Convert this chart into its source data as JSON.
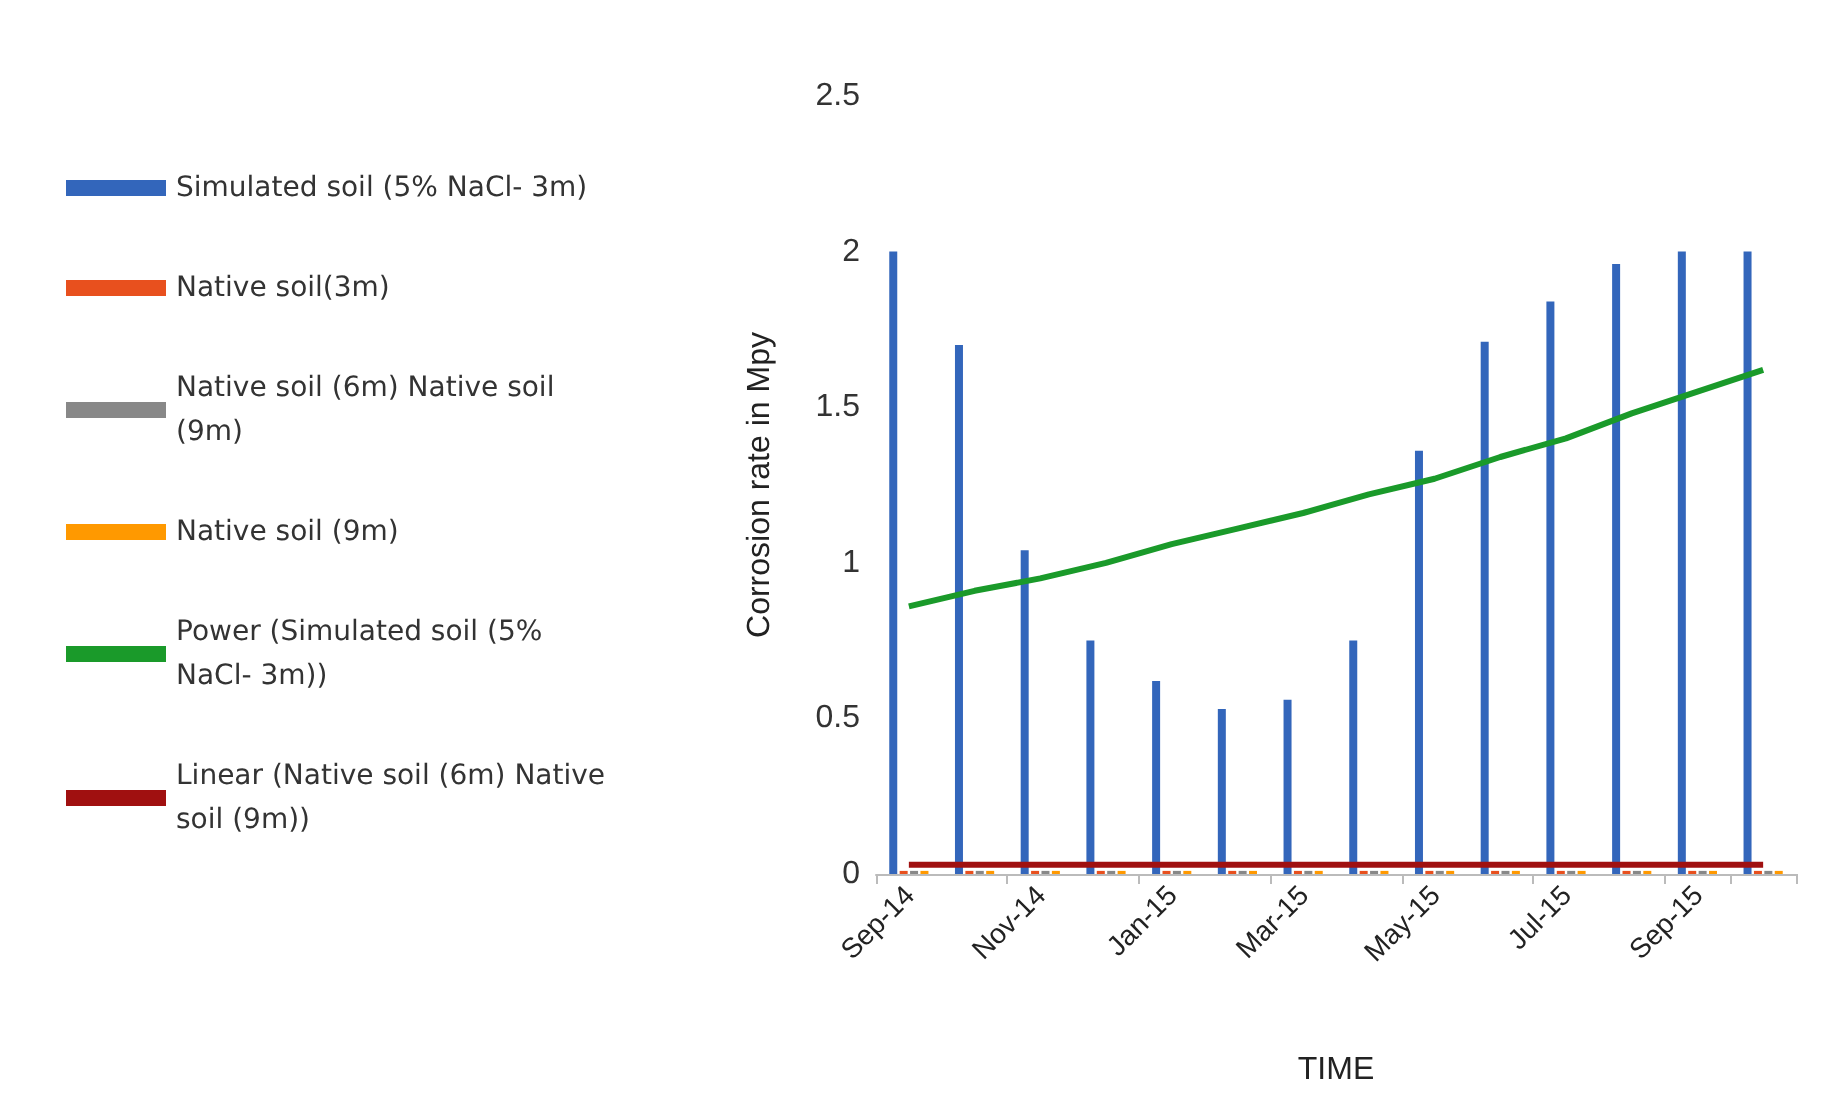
{
  "chart_data": {
    "type": "bar",
    "xlabel": "TIME",
    "ylabel": "Corrosion rate in Mpy",
    "categories": [
      "Sep-14",
      null,
      "Nov-14",
      null,
      "Jan-15",
      null,
      "Mar-15",
      null,
      "May-15",
      null,
      "Jul-15",
      null,
      "Sep-15",
      null
    ],
    "series": [
      {
        "name": "Simulated soil (5% NaCl- 3m)",
        "color": "#3366bb",
        "values": [
          2.0,
          1.7,
          1.04,
          0.75,
          0.62,
          0.53,
          0.56,
          0.75,
          1.36,
          1.71,
          1.84,
          1.96,
          2.0,
          2.0
        ]
      },
      {
        "name": "Native soil(3m)",
        "color": "#e8501e",
        "values": [
          0.01,
          0.01,
          0.01,
          0.01,
          0.01,
          0.01,
          0.01,
          0.01,
          0.01,
          0.01,
          0.01,
          0.01,
          0.01,
          0.01
        ]
      },
      {
        "name": "Native soil (6m) Native soil (9m)",
        "color": "#888888",
        "values": [
          0.01,
          0.01,
          0.01,
          0.01,
          0.01,
          0.01,
          0.01,
          0.01,
          0.01,
          0.01,
          0.01,
          0.01,
          0.01,
          0.01
        ]
      },
      {
        "name": "Native soil (9m)",
        "color": "#ff9900",
        "values": [
          0.01,
          0.01,
          0.01,
          0.01,
          0.01,
          0.01,
          0.01,
          0.01,
          0.01,
          0.01,
          0.01,
          0.01,
          0.01,
          0.01
        ]
      },
      {
        "name": "Power (Simulated soil (5% NaCl- 3m))",
        "type": "line",
        "color": "#1a9a2a",
        "values": [
          0.86,
          0.91,
          0.95,
          1.0,
          1.06,
          1.11,
          1.16,
          1.22,
          1.27,
          1.34,
          1.4,
          1.48,
          1.55,
          1.62
        ]
      },
      {
        "name": "Linear (Native soil (6m) Native soil (9m))",
        "type": "line",
        "color": "#a01010",
        "values": [
          0.03,
          0.03,
          0.03,
          0.03,
          0.03,
          0.03,
          0.03,
          0.03,
          0.03,
          0.03,
          0.03,
          0.03,
          0.03,
          0.03
        ]
      }
    ],
    "ylim": [
      0,
      2.5
    ],
    "yticks": [
      0,
      0.5,
      1,
      1.5,
      2,
      2.5
    ],
    "grid": false,
    "legend": "left",
    "marker": "none"
  }
}
